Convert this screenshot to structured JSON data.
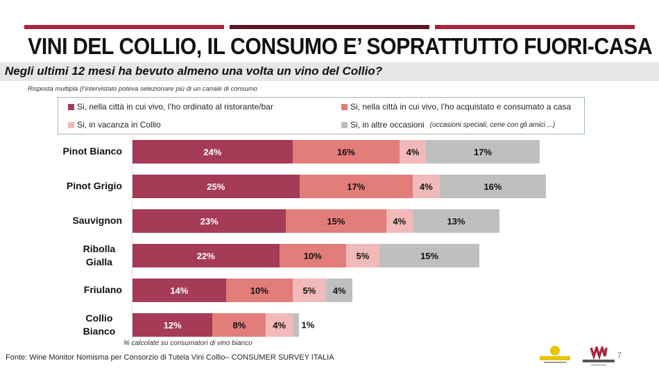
{
  "title": "VINI DEL COLLIO, IL CONSUMO E’ SOPRATTUTTO FUORI-CASA",
  "question": "Negli ultimi 12 mesi ha bevuto almeno una volta un vino del Collio?",
  "note": "Risposta multipla (l’intervistato poteva selezionare più di un canale di consumo",
  "footnote": "% calcolate su consumatori di vino bianco",
  "source": "Fonte: Wine Monitor Nomisma per Consorzio di Tutela Vini Collio– CONSUMER SURVEY ITALIA",
  "page_number": "7",
  "logos": [
    "EVOLUTION",
    "WINE MONITOR Nomisma"
  ],
  "colors": {
    "topbar_red": "#a8263a",
    "topbar_dark": "#5a1626"
  },
  "chart_data": {
    "type": "bar",
    "orientation": "horizontal",
    "stacked": true,
    "categories": [
      "Pinot Bianco",
      "Pinot Grigio",
      "Sauvignon",
      "Ribolla Gialla",
      "Friulano",
      "Collio Bianco"
    ],
    "series": [
      {
        "name": "Si, nella città in cui vivo, l’ho ordinato al ristorante/bar",
        "color": "#a53b56",
        "label_color": "#ffffff",
        "values": [
          24,
          25,
          23,
          22,
          14,
          12
        ]
      },
      {
        "name": "Si, nella città in cui vivo, l’ho acquistato e consumato a casa",
        "color": "#e27d7a",
        "label_color": "#111111",
        "values": [
          16,
          17,
          15,
          10,
          10,
          8
        ]
      },
      {
        "name": "Si, in vacanza in Collio",
        "color": "#f1b9b9",
        "label_color": "#111111",
        "values": [
          4,
          4,
          4,
          5,
          5,
          4
        ]
      },
      {
        "name": "Si, in altre occasioni",
        "name_note": "(occasioni speciali, cene con gli amici ...)",
        "color": "#bfbfbf",
        "label_color": "#111111",
        "values": [
          17,
          16,
          13,
          15,
          4,
          1
        ]
      }
    ],
    "unit": "%",
    "legend_position": "top",
    "grid": false
  }
}
